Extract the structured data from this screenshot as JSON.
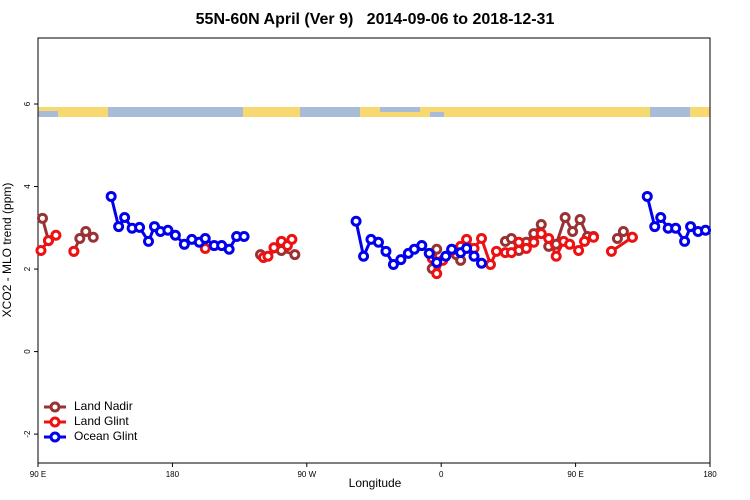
{
  "chart_data": {
    "type": "line",
    "title": "55N-60N April (Ver 9)   2014-09-06 to 2018-12-31",
    "xlabel": "Longitude",
    "ylabel": "XCO2 - MLO trend (ppm)",
    "xlim": [
      90,
      540
    ],
    "xticks": [
      {
        "value": 90,
        "label": "90 E"
      },
      {
        "value": 180,
        "label": "180"
      },
      {
        "value": 270,
        "label": "90 W"
      },
      {
        "value": 360,
        "label": "0"
      },
      {
        "value": 450,
        "label": "90 E"
      },
      {
        "value": 540,
        "label": "180"
      }
    ],
    "ylim": [
      -2.7,
      7.6
    ],
    "yticks": [
      -2,
      0,
      2,
      4,
      6
    ],
    "legend": "bottom-left",
    "series": [
      {
        "name": "Land Nadir",
        "color": "#993333",
        "x": [
          93,
          97,
          null,
          114,
          118,
          122,
          127,
          null,
          239,
          253,
          262,
          null,
          354,
          357,
          null,
          370,
          373,
          null,
          403,
          407,
          412,
          417,
          422,
          427,
          432,
          437,
          443,
          448,
          453,
          458,
          462,
          null,
          478,
          482,
          488
        ],
        "values": [
          3.23,
          2.69,
          null,
          2.43,
          2.74,
          2.91,
          2.77,
          null,
          2.35,
          2.45,
          2.35,
          null,
          2.01,
          2.48,
          null,
          2.35,
          2.21,
          null,
          2.67,
          2.74,
          2.45,
          2.65,
          2.86,
          3.08,
          2.55,
          2.6,
          3.25,
          2.91,
          3.2,
          2.79,
          2.79,
          null,
          2.74,
          2.91,
          2.77
        ]
      },
      {
        "name": "Land Glint",
        "color": "#ee1111",
        "x": [
          92,
          97,
          102,
          null,
          114,
          null,
          202,
          null,
          241,
          244,
          248,
          253,
          257,
          260,
          null,
          354,
          357,
          361,
          367,
          373,
          377,
          382,
          387,
          393,
          397,
          403,
          407,
          412,
          417,
          422,
          427,
          432,
          437,
          442,
          446,
          452,
          456,
          462,
          null,
          474,
          488
        ],
        "values": [
          2.45,
          2.69,
          2.82,
          null,
          2.43,
          null,
          2.5,
          null,
          2.28,
          2.31,
          2.52,
          2.67,
          2.57,
          2.72,
          null,
          2.26,
          1.89,
          2.21,
          2.45,
          2.55,
          2.72,
          2.5,
          2.74,
          2.11,
          2.43,
          2.4,
          2.4,
          2.65,
          2.5,
          2.65,
          2.86,
          2.74,
          2.31,
          2.67,
          2.6,
          2.45,
          2.67,
          2.77,
          null,
          2.43,
          2.77
        ]
      },
      {
        "name": "Ocean Glint",
        "color": "#0000ee",
        "x": [
          139,
          144,
          148,
          153,
          158,
          164,
          168,
          172,
          177,
          182,
          188,
          193,
          198,
          202,
          208,
          213,
          218,
          223,
          228,
          null,
          303,
          308,
          313,
          318,
          323,
          328,
          333,
          338,
          342,
          347,
          352,
          357,
          363,
          367,
          373,
          377,
          382,
          387,
          null,
          498,
          503,
          507,
          512,
          517,
          523,
          527,
          532,
          537
        ],
        "values": [
          3.76,
          3.03,
          3.25,
          2.99,
          3.01,
          2.67,
          3.03,
          2.91,
          2.94,
          2.82,
          2.6,
          2.72,
          2.65,
          2.74,
          2.57,
          2.57,
          2.48,
          2.79,
          2.79,
          null,
          3.16,
          2.31,
          2.72,
          2.65,
          2.43,
          2.11,
          2.23,
          2.38,
          2.48,
          2.57,
          2.38,
          2.16,
          2.31,
          2.48,
          2.4,
          2.5,
          2.31,
          2.14,
          null,
          3.76,
          3.03,
          3.25,
          2.99,
          2.99,
          2.67,
          3.03,
          2.91,
          2.94
        ]
      }
    ]
  }
}
